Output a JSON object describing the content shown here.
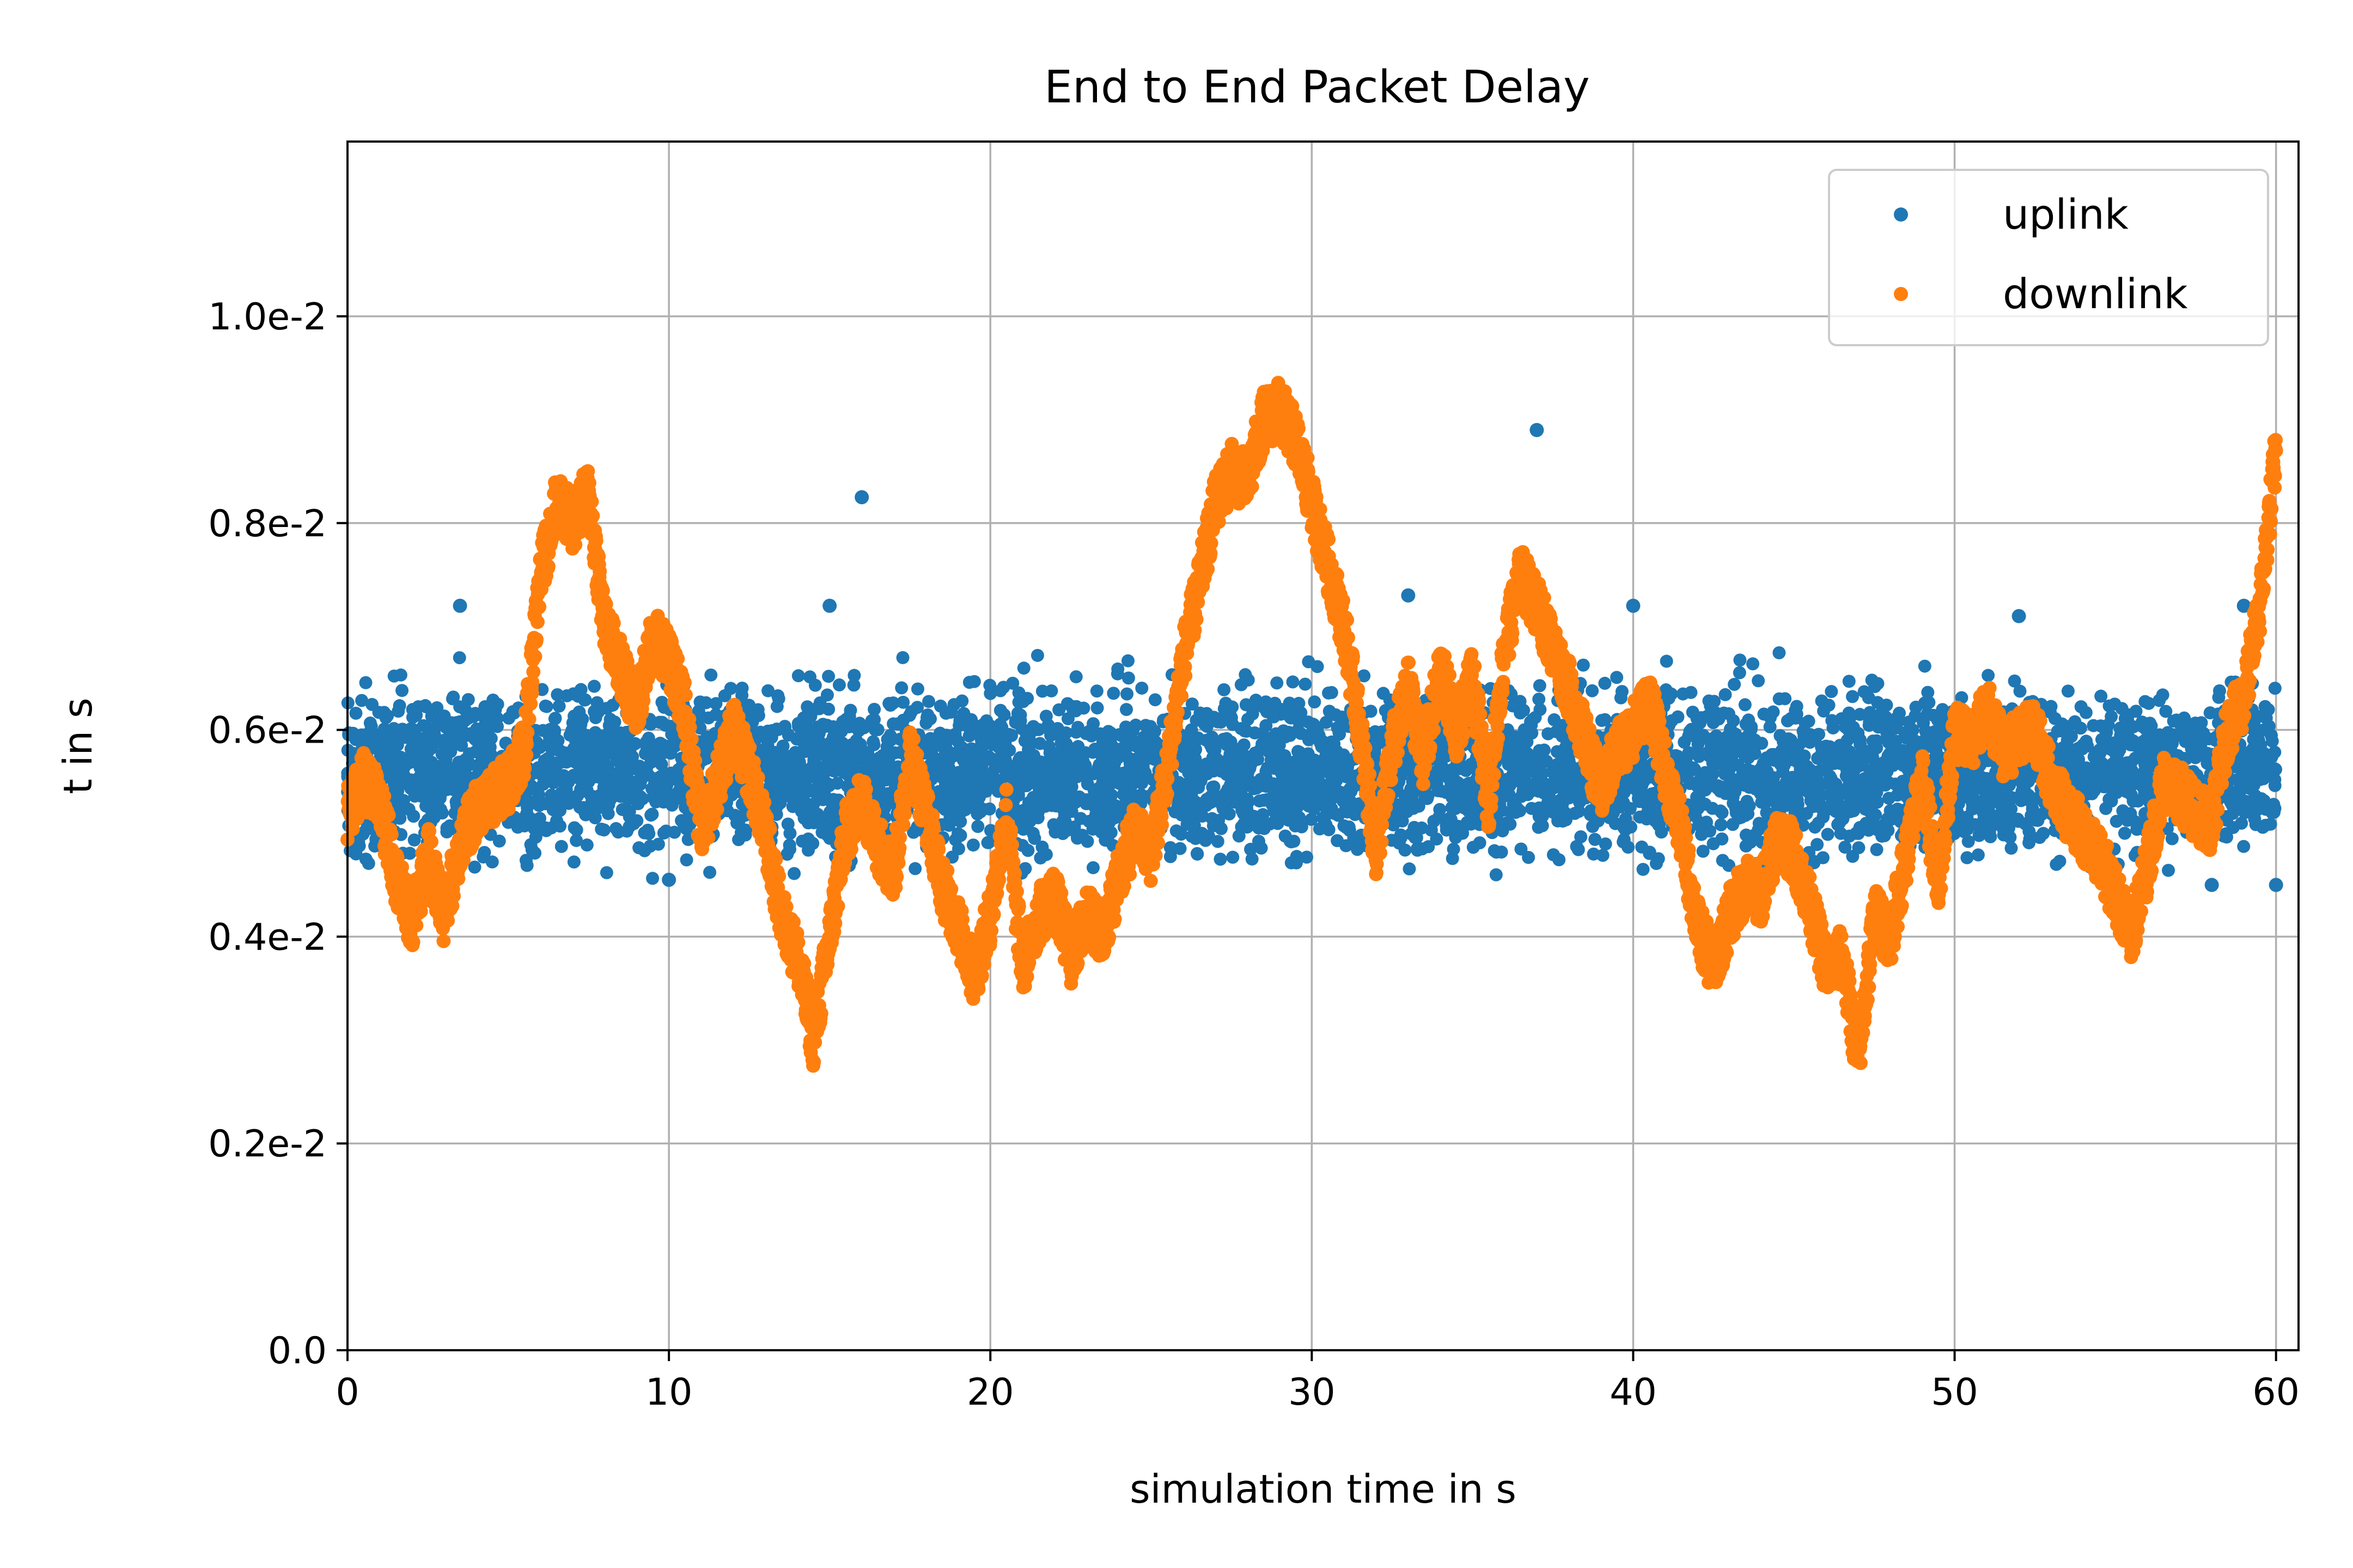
{
  "chart_data": {
    "type": "scatter",
    "title": "End to End Packet Delay",
    "xlabel": "simulation time in s",
    "ylabel": "t in s",
    "xlim": [
      0,
      60.7
    ],
    "ylim": [
      0,
      0.01169
    ],
    "x_ticks": [
      {
        "value": 0,
        "label": "0"
      },
      {
        "value": 10,
        "label": "10"
      },
      {
        "value": 20,
        "label": "20"
      },
      {
        "value": 30,
        "label": "30"
      },
      {
        "value": 40,
        "label": "40"
      },
      {
        "value": 50,
        "label": "50"
      },
      {
        "value": 60,
        "label": "60"
      }
    ],
    "y_ticks": [
      {
        "value": 0,
        "label": "0.0"
      },
      {
        "value": 0.002,
        "label": "0.2e-2"
      },
      {
        "value": 0.004,
        "label": "0.4e-2"
      },
      {
        "value": 0.006,
        "label": "0.6e-2"
      },
      {
        "value": 0.008,
        "label": "0.8e-2"
      },
      {
        "value": 0.01,
        "label": "1.0e-2"
      }
    ],
    "grid": true,
    "legend": "top-right",
    "series": [
      {
        "name": "uplink",
        "color": "#1f77b4",
        "band": {
          "x_start": 0,
          "x_end": 60,
          "center": 0.0056,
          "spread": 0.00068
        },
        "outliers": [
          {
            "x": 16.0,
            "y": 0.00825
          },
          {
            "x": 37.0,
            "y": 0.0089
          },
          {
            "x": 3.5,
            "y": 0.0072
          },
          {
            "x": 15.0,
            "y": 0.0072
          },
          {
            "x": 33.0,
            "y": 0.0073
          },
          {
            "x": 40.0,
            "y": 0.0072
          },
          {
            "x": 52.0,
            "y": 0.0071
          },
          {
            "x": 59.0,
            "y": 0.0072
          },
          {
            "x": 10.0,
            "y": 0.00455
          },
          {
            "x": 44.0,
            "y": 0.0046
          },
          {
            "x": 58.0,
            "y": 0.0045
          },
          {
            "x": 60.0,
            "y": 0.0045
          }
        ]
      },
      {
        "name": "downlink",
        "color": "#ff7f0e",
        "trace": [
          [
            0,
            0.0052
          ],
          [
            0.5,
            0.0055
          ],
          [
            1.0,
            0.0053
          ],
          [
            1.5,
            0.0046
          ],
          [
            2.0,
            0.0041
          ],
          [
            2.5,
            0.0048
          ],
          [
            3.0,
            0.0042
          ],
          [
            3.5,
            0.0049
          ],
          [
            4.0,
            0.0052
          ],
          [
            5.0,
            0.0055
          ],
          [
            5.5,
            0.0058
          ],
          [
            6.0,
            0.0075
          ],
          [
            6.5,
            0.0082
          ],
          [
            7.0,
            0.008
          ],
          [
            7.5,
            0.0083
          ],
          [
            8.0,
            0.007
          ],
          [
            8.5,
            0.0066
          ],
          [
            9.0,
            0.0062
          ],
          [
            9.5,
            0.0069
          ],
          [
            10.0,
            0.0067
          ],
          [
            10.5,
            0.0062
          ],
          [
            11.0,
            0.005
          ],
          [
            11.5,
            0.0055
          ],
          [
            12.0,
            0.006
          ],
          [
            12.5,
            0.0056
          ],
          [
            13.0,
            0.005
          ],
          [
            13.5,
            0.0042
          ],
          [
            14.0,
            0.0038
          ],
          [
            14.5,
            0.003
          ],
          [
            15.0,
            0.004
          ],
          [
            15.5,
            0.005
          ],
          [
            16.0,
            0.0053
          ],
          [
            16.5,
            0.0049
          ],
          [
            17.0,
            0.0046
          ],
          [
            17.5,
            0.0058
          ],
          [
            18.0,
            0.0052
          ],
          [
            18.5,
            0.0045
          ],
          [
            19.0,
            0.0041
          ],
          [
            19.5,
            0.0036
          ],
          [
            20.0,
            0.0042
          ],
          [
            20.5,
            0.0052
          ],
          [
            21.0,
            0.0037
          ],
          [
            21.5,
            0.0042
          ],
          [
            22.0,
            0.0044
          ],
          [
            22.5,
            0.0038
          ],
          [
            23.0,
            0.0042
          ],
          [
            23.5,
            0.004
          ],
          [
            24.0,
            0.0046
          ],
          [
            24.5,
            0.005
          ],
          [
            25.0,
            0.0048
          ],
          [
            25.5,
            0.0056
          ],
          [
            26.0,
            0.0067
          ],
          [
            26.5,
            0.0074
          ],
          [
            27.0,
            0.0082
          ],
          [
            27.5,
            0.0085
          ],
          [
            28.0,
            0.0084
          ],
          [
            28.5,
            0.009
          ],
          [
            29.0,
            0.0091
          ],
          [
            29.5,
            0.0088
          ],
          [
            30.0,
            0.0082
          ],
          [
            30.5,
            0.0076
          ],
          [
            31.0,
            0.007
          ],
          [
            31.5,
            0.006
          ],
          [
            32.0,
            0.0048
          ],
          [
            32.5,
            0.0058
          ],
          [
            33.0,
            0.0064
          ],
          [
            33.5,
            0.0057
          ],
          [
            34.0,
            0.0066
          ],
          [
            34.5,
            0.006
          ],
          [
            35.0,
            0.0065
          ],
          [
            35.5,
            0.0053
          ],
          [
            36.0,
            0.0068
          ],
          [
            36.5,
            0.0075
          ],
          [
            37.0,
            0.0072
          ],
          [
            37.5,
            0.0068
          ],
          [
            38.0,
            0.0064
          ],
          [
            38.5,
            0.0059
          ],
          [
            39.0,
            0.0054
          ],
          [
            39.5,
            0.0058
          ],
          [
            40.0,
            0.006
          ],
          [
            40.5,
            0.0063
          ],
          [
            41.0,
            0.0056
          ],
          [
            41.5,
            0.005
          ],
          [
            42.0,
            0.0041
          ],
          [
            42.5,
            0.0037
          ],
          [
            43.0,
            0.0042
          ],
          [
            43.5,
            0.0045
          ],
          [
            44.0,
            0.0044
          ],
          [
            44.5,
            0.005
          ],
          [
            45.0,
            0.0048
          ],
          [
            45.5,
            0.0043
          ],
          [
            46.0,
            0.0037
          ],
          [
            46.5,
            0.0038
          ],
          [
            47.0,
            0.0028
          ],
          [
            47.5,
            0.0042
          ],
          [
            48.0,
            0.004
          ],
          [
            48.5,
            0.0048
          ],
          [
            49.0,
            0.0055
          ],
          [
            49.5,
            0.0045
          ],
          [
            50.0,
            0.006
          ],
          [
            50.5,
            0.0059
          ],
          [
            51.0,
            0.0062
          ],
          [
            51.5,
            0.0058
          ],
          [
            52.0,
            0.0059
          ],
          [
            52.5,
            0.006
          ],
          [
            53.0,
            0.0055
          ],
          [
            53.5,
            0.0052
          ],
          [
            54.0,
            0.005
          ],
          [
            54.5,
            0.0048
          ],
          [
            55.0,
            0.0044
          ],
          [
            55.5,
            0.004
          ],
          [
            56.0,
            0.0047
          ],
          [
            56.5,
            0.0055
          ],
          [
            57.0,
            0.0054
          ],
          [
            57.5,
            0.0052
          ],
          [
            58.0,
            0.0051
          ],
          [
            58.5,
            0.006
          ],
          [
            59.0,
            0.0063
          ],
          [
            59.5,
            0.0072
          ],
          [
            60.0,
            0.0087
          ]
        ]
      }
    ]
  }
}
